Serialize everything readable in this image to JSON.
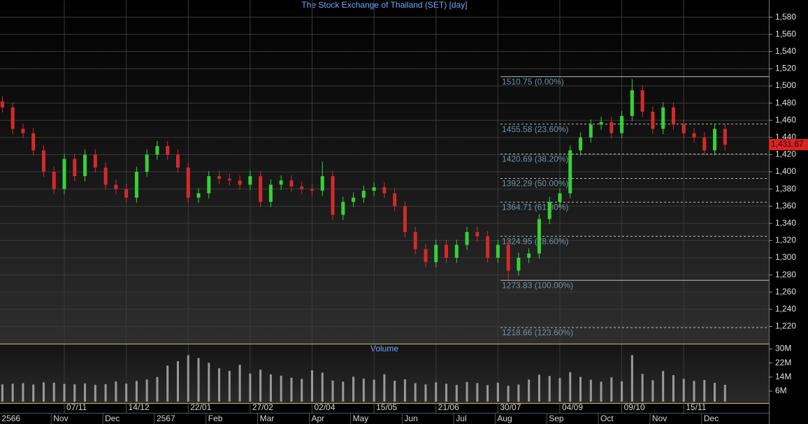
{
  "chart_data": {
    "type": "candlestick",
    "title": "The Stock Exchange of Thailand (SET) [day]",
    "categories": [
      null,
      null,
      null,
      null,
      null,
      null,
      "07/11",
      null,
      null,
      null,
      null,
      null,
      "14/12",
      null,
      null,
      null,
      null,
      null,
      "22/01",
      null,
      null,
      null,
      null,
      null,
      "27/02",
      null,
      null,
      null,
      null,
      null,
      "02/04",
      null,
      null,
      null,
      null,
      null,
      "15/05",
      null,
      null,
      null,
      null,
      null,
      "21/06",
      null,
      null,
      null,
      null,
      null,
      "30/07",
      null,
      null,
      null,
      null,
      null,
      "04/09",
      null,
      null,
      null,
      null,
      null,
      "09/10",
      null,
      null,
      null,
      null,
      null,
      "15/11",
      null,
      null,
      null,
      null
    ],
    "month_labels": [
      "2566",
      null,
      null,
      null,
      null,
      "Nov",
      null,
      null,
      null,
      null,
      "Dec",
      null,
      null,
      null,
      null,
      "2567",
      null,
      null,
      null,
      null,
      "Feb",
      null,
      null,
      null,
      null,
      "Mar",
      null,
      null,
      null,
      null,
      "Apr",
      null,
      null,
      null,
      "May",
      null,
      null,
      null,
      null,
      "Jun",
      null,
      null,
      null,
      null,
      "Jul",
      null,
      null,
      null,
      "Aug",
      null,
      null,
      null,
      null,
      "Sep",
      null,
      null,
      null,
      null,
      "Oct",
      null,
      null,
      null,
      null,
      "Nov",
      null,
      null,
      null,
      null,
      "Dec",
      null,
      null
    ],
    "candles": {
      "open": [
        1482,
        1475,
        1450,
        1445,
        1425,
        1400,
        1380,
        1415,
        1395,
        1420,
        1405,
        1385,
        1380,
        1370,
        1400,
        1420,
        1430,
        1420,
        1405,
        1370,
        1375,
        1395,
        1392,
        1390,
        1385,
        1395,
        1365,
        1385,
        1390,
        1383,
        1380,
        1378,
        1395,
        1350,
        1365,
        1370,
        1378,
        1382,
        1375,
        1360,
        1330,
        1310,
        1295,
        1315,
        1300,
        1315,
        1330,
        1325,
        1300,
        1315,
        1285,
        1300,
        1305,
        1345,
        1365,
        1375,
        1425,
        1440,
        1455,
        1458,
        1445,
        1465,
        1495,
        1470,
        1450,
        1475,
        1455,
        1445,
        1440,
        1425,
        1450
      ],
      "high": [
        1488,
        1481,
        1456,
        1451,
        1431,
        1406,
        1421,
        1421,
        1426,
        1426,
        1411,
        1391,
        1386,
        1406,
        1426,
        1436,
        1436,
        1426,
        1411,
        1381,
        1401,
        1401,
        1398,
        1396,
        1401,
        1401,
        1391,
        1396,
        1396,
        1389,
        1386,
        1412,
        1401,
        1371,
        1376,
        1384,
        1388,
        1388,
        1381,
        1366,
        1336,
        1316,
        1321,
        1321,
        1321,
        1336,
        1336,
        1331,
        1321,
        1321,
        1306,
        1311,
        1351,
        1371,
        1381,
        1431,
        1446,
        1461,
        1464,
        1464,
        1471,
        1508,
        1501,
        1476,
        1481,
        1481,
        1461,
        1451,
        1446,
        1456,
        1456
      ],
      "low": [
        1469,
        1444,
        1439,
        1419,
        1394,
        1374,
        1374,
        1389,
        1389,
        1399,
        1379,
        1374,
        1364,
        1364,
        1394,
        1414,
        1414,
        1399,
        1364,
        1364,
        1369,
        1386,
        1384,
        1379,
        1379,
        1359,
        1359,
        1379,
        1377,
        1374,
        1372,
        1372,
        1344,
        1344,
        1359,
        1364,
        1372,
        1369,
        1354,
        1324,
        1304,
        1289,
        1289,
        1294,
        1294,
        1309,
        1319,
        1294,
        1294,
        1274,
        1279,
        1294,
        1299,
        1339,
        1359,
        1369,
        1419,
        1434,
        1449,
        1439,
        1439,
        1459,
        1464,
        1444,
        1444,
        1449,
        1439,
        1434,
        1419,
        1419,
        1425
      ],
      "close": [
        1475,
        1450,
        1445,
        1425,
        1400,
        1380,
        1415,
        1395,
        1420,
        1405,
        1385,
        1380,
        1370,
        1400,
        1420,
        1430,
        1420,
        1405,
        1370,
        1375,
        1395,
        1392,
        1390,
        1385,
        1395,
        1365,
        1385,
        1390,
        1383,
        1380,
        1378,
        1395,
        1350,
        1365,
        1370,
        1378,
        1382,
        1375,
        1360,
        1330,
        1310,
        1295,
        1315,
        1300,
        1315,
        1330,
        1325,
        1300,
        1315,
        1285,
        1300,
        1305,
        1345,
        1365,
        1375,
        1425,
        1440,
        1455,
        1458,
        1445,
        1465,
        1495,
        1470,
        1450,
        1475,
        1455,
        1445,
        1440,
        1425,
        1450,
        1431.67
      ]
    },
    "up_color": "#35d235",
    "down_color": "#d42a2a",
    "ylim": [
      1200,
      1600
    ],
    "yticks": [
      {
        "value": 1220,
        "label": "1,220"
      },
      {
        "value": 1240,
        "label": "1,240"
      },
      {
        "value": 1260,
        "label": "1,260"
      },
      {
        "value": 1280,
        "label": "1,280"
      },
      {
        "value": 1300,
        "label": "1,300"
      },
      {
        "value": 1320,
        "label": "1,320"
      },
      {
        "value": 1340,
        "label": "1,340"
      },
      {
        "value": 1360,
        "label": "1,360"
      },
      {
        "value": 1380,
        "label": "1,380"
      },
      {
        "value": 1400,
        "label": "1,400"
      },
      {
        "value": 1420,
        "label": "1,420"
      },
      {
        "value": 1440,
        "label": "1,440"
      },
      {
        "value": 1460,
        "label": "1,460"
      },
      {
        "value": 1480,
        "label": "1,480"
      },
      {
        "value": 1500,
        "label": "1,500"
      },
      {
        "value": 1520,
        "label": "1,520"
      },
      {
        "value": 1540,
        "label": "1,540"
      },
      {
        "value": 1560,
        "label": "1,560"
      },
      {
        "value": 1580,
        "label": "1,580"
      }
    ],
    "grid": true,
    "last_price": {
      "value": 1431.67,
      "label": "1,431.67"
    },
    "fib_levels": [
      {
        "value": 1510.75,
        "label": "1510.75 (0.00%)"
      },
      {
        "value": 1455.58,
        "label": "1455.58 (23.60%)"
      },
      {
        "value": 1420.69,
        "label": "1420.69 (38.20%)"
      },
      {
        "value": 1392.29,
        "label": "1392.29 (50.00%)"
      },
      {
        "value": 1364.71,
        "label": "1364.71 (61.80%)"
      },
      {
        "value": 1324.95,
        "label": "1324.95 (78.60%)"
      },
      {
        "value": 1273.83,
        "label": "1273.83 (100.00%)"
      },
      {
        "value": 1218.66,
        "label": "1218.66 (123.60%)"
      }
    ],
    "volume": {
      "title": "Volume",
      "color": "#9a9a9a",
      "values": [
        9800000,
        10200000,
        10500000,
        9700000,
        11000000,
        10800000,
        10100000,
        9900000,
        10400000,
        9600000,
        10000000,
        11500000,
        10300000,
        11800000,
        12600000,
        14000000,
        20500000,
        23000000,
        26400000,
        24800000,
        22100000,
        19000000,
        17500000,
        21000000,
        16000000,
        18200000,
        15500000,
        14800000,
        13600000,
        12900000,
        17800000,
        16500000,
        12000000,
        11400000,
        14200000,
        13100000,
        12500000,
        15600000,
        11900000,
        12700000,
        10500000,
        9800000,
        11000000,
        10200000,
        9500000,
        11200000,
        10600000,
        9400000,
        10800000,
        9000000,
        9700000,
        12600000,
        15300000,
        14600000,
        13400000,
        16800000,
        14100000,
        12500000,
        11300000,
        13800000,
        11600000,
        26500000,
        15800000,
        12200000,
        17400000,
        15100000,
        13000000,
        11800000,
        12300000,
        10700000,
        9600000
      ],
      "ylim": [
        0,
        33000000
      ],
      "yticks": [
        {
          "value": 6000000,
          "label": "6M"
        },
        {
          "value": 14000000,
          "label": "14M"
        },
        {
          "value": 22000000,
          "label": "22M"
        },
        {
          "value": 30000000,
          "label": "30M"
        }
      ]
    }
  }
}
